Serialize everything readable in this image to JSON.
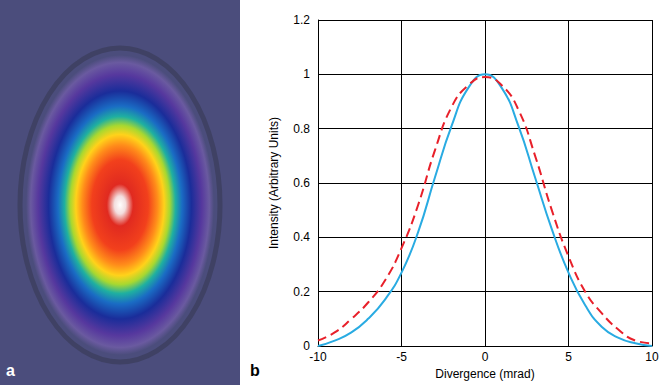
{
  "chart_data": [
    {
      "type": "image",
      "label": "a"
    },
    {
      "type": "line",
      "label": "b",
      "xlabel": "Divergence (mrad)",
      "ylabel": "Intensity (Arbitrary Units)",
      "x": [
        -10,
        -9,
        -8,
        -7,
        -6,
        -5,
        -4,
        -3,
        -2,
        -1,
        0,
        1,
        2,
        3,
        4,
        5,
        6,
        7,
        8,
        9,
        10
      ],
      "series": [
        {
          "color": "#29abe2",
          "line_style": "solid",
          "values": [
            0.0,
            0.02,
            0.05,
            0.1,
            0.17,
            0.27,
            0.42,
            0.62,
            0.81,
            0.95,
            1.0,
            0.95,
            0.81,
            0.62,
            0.43,
            0.27,
            0.15,
            0.07,
            0.03,
            0.01,
            0.0
          ]
        },
        {
          "color": "#e8202a",
          "line_style": "dashed",
          "values": [
            0.02,
            0.05,
            0.1,
            0.16,
            0.24,
            0.36,
            0.52,
            0.72,
            0.88,
            0.96,
            0.99,
            0.96,
            0.87,
            0.7,
            0.5,
            0.33,
            0.2,
            0.12,
            0.06,
            0.02,
            0.01
          ]
        }
      ],
      "xlim": [
        -10,
        10
      ],
      "xticks": [
        -10,
        -5,
        0,
        5,
        10
      ],
      "ylim": [
        0,
        1.2
      ],
      "yticks": [
        0,
        0.2,
        0.4,
        0.6,
        0.8,
        1,
        1.2
      ],
      "grid": true
    }
  ]
}
